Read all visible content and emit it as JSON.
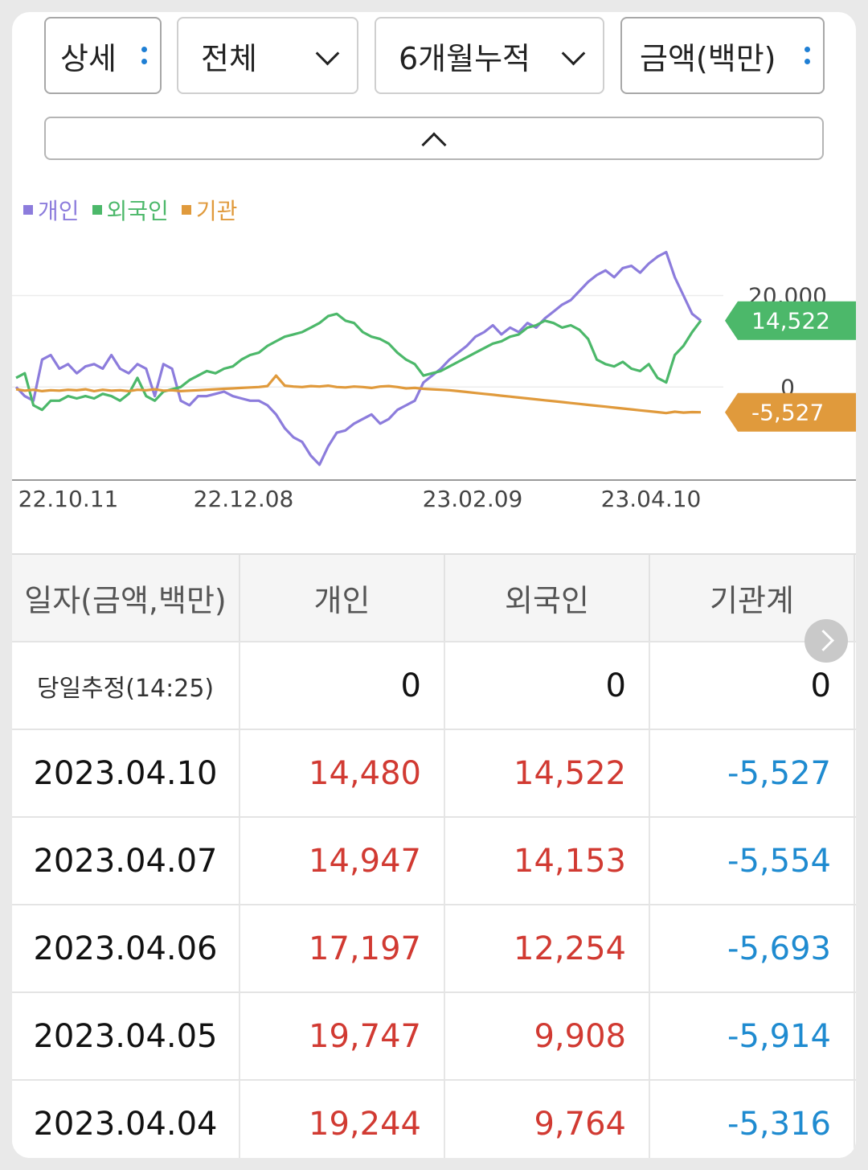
{
  "controls": {
    "detail_label": "상세",
    "scope_label": "전체",
    "period_label": "6개월누적",
    "unit_label": "금액(백만)"
  },
  "colors": {
    "individual": "#8c7cdc",
    "foreign": "#4cb86a",
    "institution": "#e09a3c",
    "positive": "#d13a32",
    "negative": "#1f8bd0"
  },
  "icons": {
    "more": "vertical-dots-icon",
    "dropdown": "chevron-down-icon",
    "collapse": "chevron-up-icon",
    "next": "chevron-right-icon"
  },
  "chart_data": {
    "type": "line",
    "legend": [
      "개인",
      "외국인",
      "기관"
    ],
    "x_ticks": [
      "22.10.11",
      "22.12.08",
      "23.02.09",
      "23.04.10"
    ],
    "y_ticks": [
      "20,000",
      "0"
    ],
    "ylim": [
      -20000,
      31000
    ],
    "series": [
      {
        "name": "개인",
        "values": [
          0,
          -2000,
          -3000,
          6000,
          7000,
          4000,
          5000,
          3000,
          4500,
          5000,
          4000,
          7000,
          4000,
          3000,
          5000,
          4000,
          -2000,
          5000,
          4000,
          -3000,
          -4000,
          -2000,
          -2000,
          -1500,
          -1000,
          -2000,
          -2500,
          -3000,
          -3000,
          -4000,
          -6000,
          -9000,
          -11000,
          -12000,
          -15000,
          -17000,
          -13000,
          -10000,
          -9500,
          -8000,
          -7000,
          -6000,
          -8000,
          -7000,
          -5000,
          -4000,
          -3000,
          1000,
          2500,
          4000,
          6000,
          7500,
          9000,
          11000,
          12000,
          13500,
          11500,
          13000,
          12000,
          14000,
          13000,
          15000,
          16500,
          18000,
          19000,
          21000,
          23000,
          24500,
          25500,
          24000,
          26000,
          26500,
          25000,
          27000,
          28500,
          29500,
          24000,
          20000,
          16000,
          14500
        ],
        "color": "#8c7cdc"
      },
      {
        "name": "외국인",
        "values": [
          2000,
          3000,
          -4000,
          -5000,
          -3000,
          -3000,
          -2000,
          -2500,
          -2000,
          -2500,
          -1500,
          -2000,
          -3000,
          -1500,
          2000,
          -2000,
          -3000,
          -1000,
          -500,
          0,
          1500,
          2500,
          3500,
          3000,
          4000,
          4500,
          6000,
          7000,
          7500,
          9000,
          10000,
          11000,
          11500,
          12000,
          13000,
          14000,
          15500,
          16000,
          14500,
          14000,
          12000,
          11000,
          10500,
          9500,
          7500,
          6000,
          5000,
          2500,
          3000,
          3500,
          4500,
          5500,
          6500,
          7500,
          8500,
          9500,
          10000,
          11000,
          11500,
          13000,
          13500,
          14500,
          14000,
          13000,
          13500,
          12500,
          10500,
          6000,
          5000,
          4500,
          5500,
          4000,
          3500,
          5000,
          2000,
          1000,
          7000,
          9000,
          12000,
          14522
        ],
        "color": "#4cb86a"
      },
      {
        "name": "기관",
        "values": [
          -500,
          -800,
          -600,
          -900,
          -700,
          -800,
          -600,
          -700,
          -500,
          -900,
          -600,
          -800,
          -700,
          -900,
          -600,
          -700,
          -500,
          -800,
          -700,
          -900,
          -800,
          -700,
          -600,
          -500,
          -400,
          -300,
          -200,
          -100,
          0,
          200,
          2500,
          300,
          100,
          0,
          200,
          100,
          300,
          0,
          -100,
          100,
          0,
          -200,
          100,
          200,
          0,
          -300,
          -200,
          -400,
          -500,
          -600,
          -700,
          -900,
          -1100,
          -1300,
          -1500,
          -1700,
          -1900,
          -2100,
          -2300,
          -2500,
          -2700,
          -2900,
          -3100,
          -3300,
          -3500,
          -3700,
          -3900,
          -4100,
          -4300,
          -4500,
          -4700,
          -4900,
          -5100,
          -5300,
          -5500,
          -5700,
          -5400,
          -5600,
          -5500,
          -5527
        ],
        "color": "#e09a3c"
      }
    ],
    "badges": [
      {
        "series": "외국인",
        "value": "14,522"
      },
      {
        "series": "기관",
        "value": "-5,527"
      }
    ],
    "grid": true
  },
  "table": {
    "headers": [
      "일자(금액,백만)",
      "개인",
      "외국인",
      "기관계"
    ],
    "estimate_row": {
      "label": "당일추정(14:25)",
      "individual": "0",
      "foreign": "0",
      "institution": "0"
    },
    "rows": [
      {
        "date": "2023.04.10",
        "individual": "14,480",
        "foreign": "14,522",
        "institution": "-5,527"
      },
      {
        "date": "2023.04.07",
        "individual": "14,947",
        "foreign": "14,153",
        "institution": "-5,554"
      },
      {
        "date": "2023.04.06",
        "individual": "17,197",
        "foreign": "12,254",
        "institution": "-5,693"
      },
      {
        "date": "2023.04.05",
        "individual": "19,747",
        "foreign": "9,908",
        "institution": "-5,914"
      },
      {
        "date": "2023.04.04",
        "individual": "19,244",
        "foreign": "9,764",
        "institution": "-5,316"
      }
    ]
  }
}
